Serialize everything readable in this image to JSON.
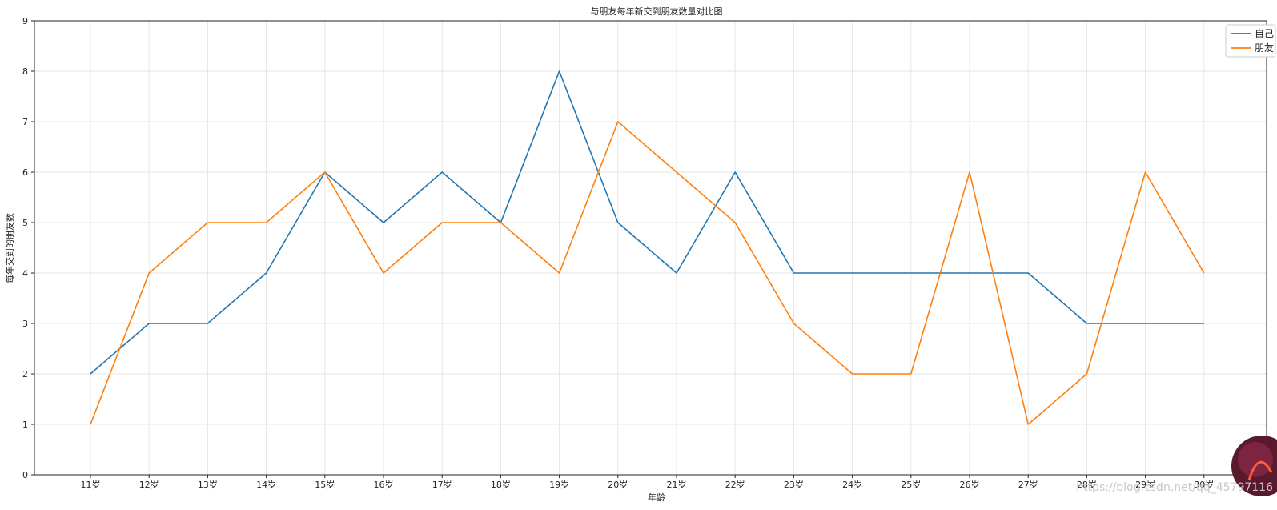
{
  "chart_data": {
    "type": "line",
    "title": "与朋友每年新交到朋友数量对比图",
    "xlabel": "年龄",
    "ylabel": "每年交到的朋友数",
    "categories": [
      "11岁",
      "12岁",
      "13岁",
      "14岁",
      "15岁",
      "16岁",
      "17岁",
      "18岁",
      "19岁",
      "20岁",
      "21岁",
      "22岁",
      "23岁",
      "24岁",
      "25岁",
      "26岁",
      "27岁",
      "28岁",
      "29岁",
      "30岁"
    ],
    "ylim": [
      0,
      9
    ],
    "yticks": [
      0,
      1,
      2,
      3,
      4,
      5,
      6,
      7,
      8,
      9
    ],
    "grid": true,
    "legend_position": "top-right",
    "series": [
      {
        "name": "自己",
        "color": "#1f77b4",
        "values": [
          2,
          3,
          3,
          4,
          6,
          5,
          6,
          5,
          8,
          5,
          4,
          6,
          4,
          4,
          4,
          4,
          4,
          3,
          3,
          3
        ]
      },
      {
        "name": "朋友",
        "color": "#ff7f0e",
        "values": [
          1,
          4,
          5,
          5,
          6,
          4,
          5,
          5,
          4,
          7,
          6,
          5,
          3,
          2,
          2,
          6,
          1,
          2,
          6,
          4
        ]
      }
    ]
  },
  "watermark": "https://blog.csdn.net/qq_45797116"
}
